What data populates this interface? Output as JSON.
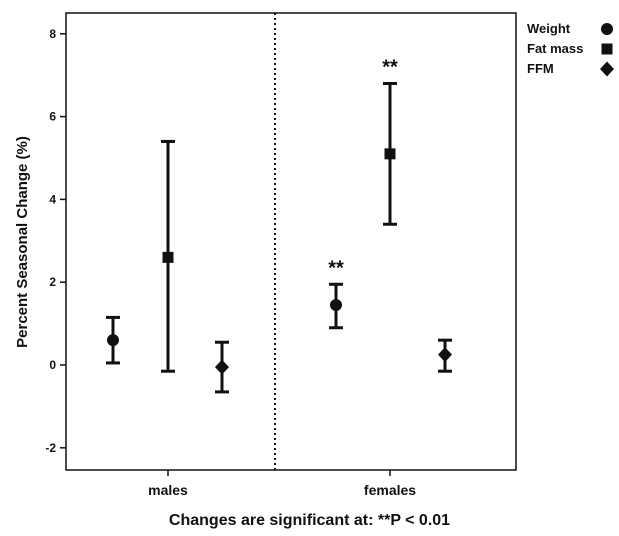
{
  "chart_data": {
    "type": "scatter",
    "ylabel": "Percent Seasonal Change (%)",
    "ylim": [
      -2.6,
      8.8
    ],
    "yticks": [
      "-2",
      "0",
      "2",
      "4",
      "6",
      "8"
    ],
    "categories": [
      "males",
      "females"
    ],
    "legend_position": "top-right",
    "series": [
      {
        "name": "Weight",
        "marker": "circle",
        "points": [
          {
            "group": "males",
            "value": 0.6,
            "lower": 0.05,
            "upper": 1.15
          },
          {
            "group": "females",
            "value": 1.45,
            "lower": 0.9,
            "upper": 1.95,
            "sig": "**"
          }
        ]
      },
      {
        "name": "Fat mass",
        "marker": "square",
        "points": [
          {
            "group": "males",
            "value": 2.6,
            "lower": -0.15,
            "upper": 5.4
          },
          {
            "group": "females",
            "value": 5.1,
            "lower": 3.4,
            "upper": 6.8,
            "sig": "**"
          }
        ]
      },
      {
        "name": "FFM",
        "marker": "diamond",
        "points": [
          {
            "group": "males",
            "value": -0.05,
            "lower": -0.65,
            "upper": 0.55
          },
          {
            "group": "females",
            "value": 0.25,
            "lower": -0.15,
            "upper": 0.6
          }
        ]
      }
    ],
    "note": "Changes are significant at: **P < 0.01",
    "colors": {
      "marks": "#111111",
      "background": "#ffffff"
    }
  }
}
